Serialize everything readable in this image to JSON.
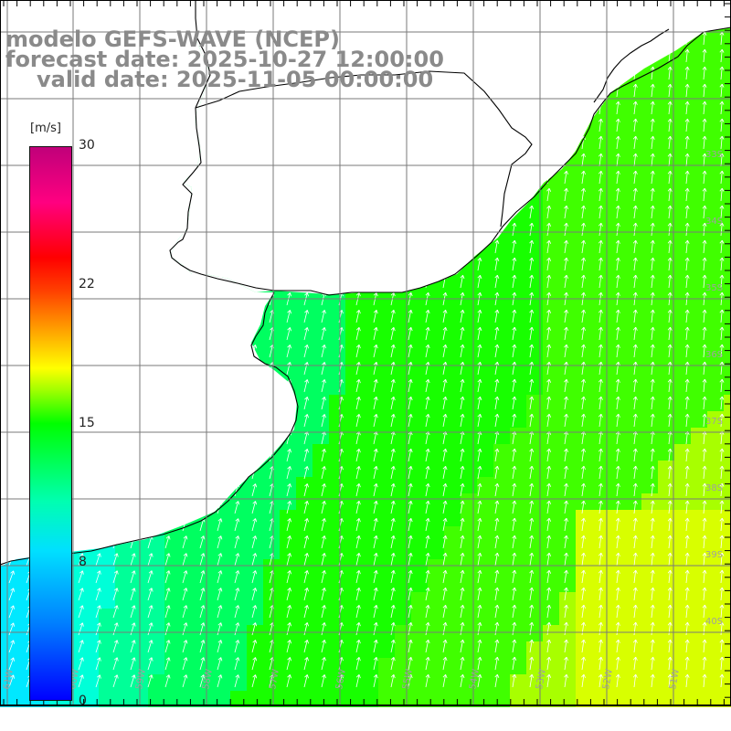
{
  "title": {
    "model": "modelo GEFS-WAVE (NCEP)",
    "forecast": "forecast date: 2025-10-27 12:00:00",
    "valid": "valid date: 2025-11-05 00:00:00"
  },
  "colorbar": {
    "unit": "[m/s]",
    "ticks": [
      {
        "label": "30",
        "value": 30
      },
      {
        "label": "22",
        "value": 22
      },
      {
        "label": "15",
        "value": 15
      },
      {
        "label": "8",
        "value": 8
      },
      {
        "label": "0",
        "value": 0
      }
    ],
    "colors": [
      "#0000ff",
      "#0080ff",
      "#00e0ff",
      "#00ffb0",
      "#00ff00",
      "#a0ff00",
      "#ffff00",
      "#ffa000",
      "#ff4000",
      "#ff0000",
      "#c0007a"
    ]
  },
  "map": {
    "land_color": "#ffffff",
    "coast_color": "#000000",
    "grid_color": "#7a7a7a",
    "arrow_color": "#ffffff",
    "wind_direction": "from south-southwest",
    "lon_labels": [
      "61W",
      "60W",
      "59W",
      "58W",
      "57W",
      "56W",
      "55W",
      "54W",
      "53W",
      "52W",
      "51W"
    ],
    "lat_labels": [
      "33S",
      "34S",
      "35S",
      "36S",
      "37S",
      "38S",
      "39S",
      "40S"
    ]
  }
}
